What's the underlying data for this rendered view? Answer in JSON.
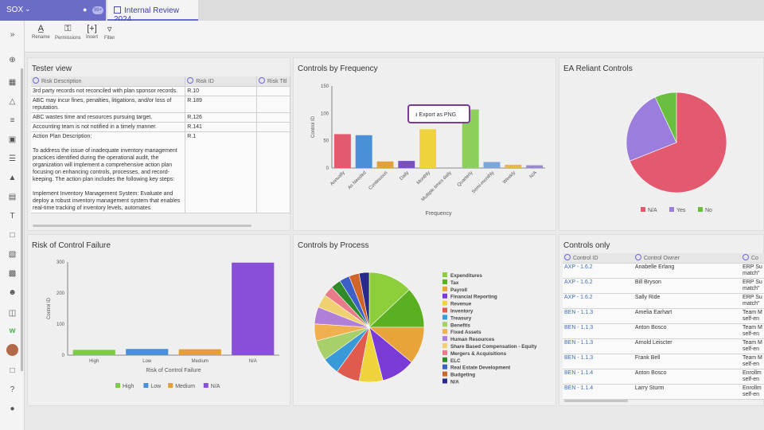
{
  "app": {
    "space_name": "SOX",
    "user_count": "99+",
    "tab_title": "Internal Review 2024"
  },
  "toolbar": {
    "rename": "Rename",
    "permissions": "Permissions",
    "insert": "Insert",
    "filter": "Filter"
  },
  "tester_view": {
    "title": "Tester view",
    "columns": [
      "Risk Description",
      "Risk ID",
      "Risk Titl"
    ],
    "rows": [
      {
        "desc": "3rd party records not reconciled with plan sponsor records.",
        "id": "R.10"
      },
      {
        "desc": "ABC may incur fines, penalties, litigations, and/or loss of reputation.",
        "id": "R.189"
      },
      {
        "desc": "ABC wastes time and resources pursuing target.",
        "id": "R.126"
      },
      {
        "desc": "Accounting team is not notified in a timely manner.",
        "id": "R.141"
      },
      {
        "desc": "Action Plan Description:\n\nTo address the issue of inadequate inventory management practices identified during the operational audit, the organization will implement a comprehensive action plan focusing on enhancing controls, processes, and record-keeping. The action plan includes the following key steps:\n\nImplement Inventory Management System: Evaluate and deploy a robust inventory management system that enables real-time tracking of inventory levels, automates",
        "id": "R.1"
      }
    ]
  },
  "freq_panel": {
    "title": "Controls by Frequency",
    "export_label": "Export as PNG"
  },
  "reliant_panel": {
    "title": "EA Reliant Controls"
  },
  "risk_panel": {
    "title": "Risk of Control Failure"
  },
  "process_panel": {
    "title": "Controls by Process"
  },
  "controls_only": {
    "title": "Controls only",
    "columns": [
      "Control ID",
      "Control Owner",
      "Co"
    ],
    "rows": [
      {
        "id": "AXP - 1.6.2",
        "owner": "Anabelle Erlang",
        "c": "ERP Su\nmatch\""
      },
      {
        "id": "AXP - 1.6.2",
        "owner": "Bill Bryson",
        "c": "ERP Su\nmatch\""
      },
      {
        "id": "AXP - 1.6.2",
        "owner": "Sally Ride",
        "c": "ERP Su\nmatch\""
      },
      {
        "id": "BEN - 1.1.3",
        "owner": "Amelia Earhart",
        "c": "Team M\nself-en"
      },
      {
        "id": "BEN - 1.1.3",
        "owner": "Anton Bosco",
        "c": "Team M\nself-en"
      },
      {
        "id": "BEN - 1.1.3",
        "owner": "Arnold Leiscter",
        "c": "Team M\nself-en"
      },
      {
        "id": "BEN - 1.1.3",
        "owner": "Frank Bell",
        "c": "Team M\nself-en"
      },
      {
        "id": "BEN - 1.1.4",
        "owner": "Anton Bosco",
        "c": "Enrollm\nself-en"
      },
      {
        "id": "BEN - 1.1.4",
        "owner": "Larry Sturm",
        "c": "Enrollm\nself-en"
      }
    ]
  },
  "chart_data": [
    {
      "type": "bar",
      "title": "Controls by Frequency",
      "xlabel": "Frequency",
      "ylabel": "Control ID",
      "ylim": [
        0,
        150
      ],
      "yticks": [
        0,
        50,
        100,
        150
      ],
      "categories": [
        "Annually",
        "As Needed",
        "Continuous",
        "Daily",
        "Monthly",
        "Multiple times daily",
        "Quarterly",
        "Semi-monthly",
        "Weekly",
        "N/A"
      ],
      "values": [
        62,
        60,
        12,
        13,
        71,
        0,
        107,
        11,
        6,
        5
      ],
      "colors": [
        "#e35a6e",
        "#4a90d9",
        "#e3a03a",
        "#7a4fc2",
        "#eed33d",
        "#f08a2d",
        "#8ccf5a",
        "#7da6dc",
        "#e8b54e",
        "#9a88cf"
      ],
      "grid": false
    },
    {
      "type": "pie",
      "title": "EA Reliant Controls",
      "labels": [
        "N/A",
        "Yes",
        "No"
      ],
      "values": [
        69,
        24,
        7
      ],
      "colors": [
        "#e35a6e",
        "#9a7ddc",
        "#6abf3e"
      ],
      "legend": "bottom"
    },
    {
      "type": "bar",
      "title": "Risk of Control Failure",
      "xlabel": "Risk of Control Failure",
      "ylabel": "Control ID",
      "ylim": [
        0,
        300
      ],
      "yticks": [
        0,
        100,
        200,
        300
      ],
      "categories": [
        "High",
        "Low",
        "Medium",
        "N/A"
      ],
      "values": [
        17,
        20,
        19,
        298
      ],
      "colors": [
        "#7fc94a",
        "#4a90d9",
        "#e3a03a",
        "#8a4fd8"
      ],
      "legend_labels": [
        "High",
        "Low",
        "Medium",
        "N/A"
      ],
      "legend": "bottom"
    },
    {
      "type": "pie",
      "title": "Controls by Process",
      "labels": [
        "Expenditures",
        "Tax",
        "Payroll",
        "Financial Reporting",
        "Revenue",
        "Inventory",
        "Treasury",
        "Benefits",
        "Fixed Assets",
        "Human Resources",
        "Share Based Compensation - Equity",
        "Mergers & Acquisitions",
        "ELC",
        "Real Estate Development",
        "Budgeting",
        "N/A"
      ],
      "values": [
        13,
        12,
        11,
        10,
        7,
        7,
        5,
        6,
        5,
        5,
        4,
        3,
        3,
        3,
        3,
        3
      ],
      "colors": [
        "#8ccf3a",
        "#5ab020",
        "#e8a33a",
        "#7a3ad8",
        "#eed33d",
        "#e05a4e",
        "#3a9ad8",
        "#a7cf6a",
        "#f0b050",
        "#b07fd8",
        "#f0d070",
        "#e87a8a",
        "#2f8a2a",
        "#3c5fc8",
        "#d0652a",
        "#2a2a8a"
      ],
      "legend": "right"
    }
  ]
}
